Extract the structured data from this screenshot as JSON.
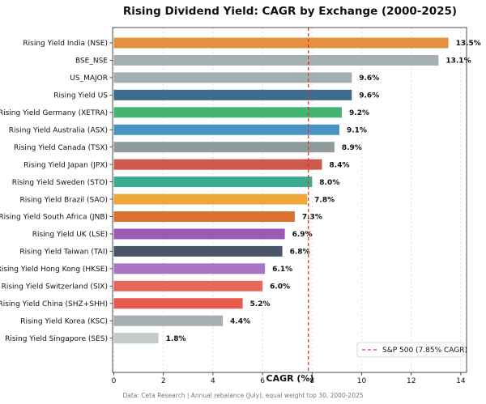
{
  "chart_data": {
    "type": "bar",
    "orientation": "horizontal",
    "title": "Rising Dividend Yield: CAGR by Exchange (2000-2025)",
    "xlabel": "CAGR (%)",
    "ylabel": "",
    "xlim": [
      0,
      14.2
    ],
    "xticks": [
      0,
      2,
      4,
      6,
      8,
      10,
      12,
      14
    ],
    "grid": "vertical dotted",
    "categories": [
      "Rising Yield India (NSE)",
      "BSE_NSE",
      "US_MAJOR",
      "Rising Yield US",
      "Rising Yield Germany (XETRA)",
      "Rising Yield Australia (ASX)",
      "Rising Yield Canada (TSX)",
      "Rising Yield Japan (JPX)",
      "Rising Yield Sweden (STO)",
      "Rising Yield Brazil (SAO)",
      "Rising Yield South Africa (JNB)",
      "Rising Yield UK (LSE)",
      "Rising Yield Taiwan (TAI)",
      "Rising Yield Hong Kong (HKSE)",
      "Rising Yield Switzerland (SIX)",
      "Rising Yield China (SHZ+SHH)",
      "Rising Yield Korea (KSC)",
      "Rising Yield Singapore (SES)"
    ],
    "values": [
      13.5,
      13.1,
      9.6,
      9.6,
      9.2,
      9.1,
      8.9,
      8.4,
      8.0,
      7.8,
      7.3,
      6.9,
      6.8,
      6.1,
      6.0,
      5.2,
      4.4,
      1.8
    ],
    "value_labels": [
      "13.5%",
      "13.1%",
      "9.6%",
      "9.6%",
      "9.2%",
      "9.1%",
      "8.9%",
      "8.4%",
      "8.0%",
      "7.8%",
      "7.3%",
      "6.9%",
      "6.8%",
      "6.1%",
      "6.0%",
      "5.2%",
      "4.4%",
      "1.8%"
    ],
    "colors": [
      "#e6913f",
      "#a3afb1",
      "#a3afb1",
      "#3e6a8c",
      "#44b475",
      "#4a93c3",
      "#8f9a9b",
      "#cd5a4c",
      "#3bab91",
      "#f0a73a",
      "#dc7030",
      "#9a5bb5",
      "#4a5668",
      "#a875c4",
      "#e8675b",
      "#e55c4f",
      "#a3afb1",
      "#c4cacb"
    ],
    "reference_line": {
      "value": 7.85,
      "label": "S&P 500 (7.85% CAGR)",
      "color": "#e5332a",
      "style": "dashed"
    },
    "legend_position": "bottom-right"
  },
  "footer": "Data: Ceta Research | Annual rebalance (July), equal weight top 30, 2000-2025"
}
